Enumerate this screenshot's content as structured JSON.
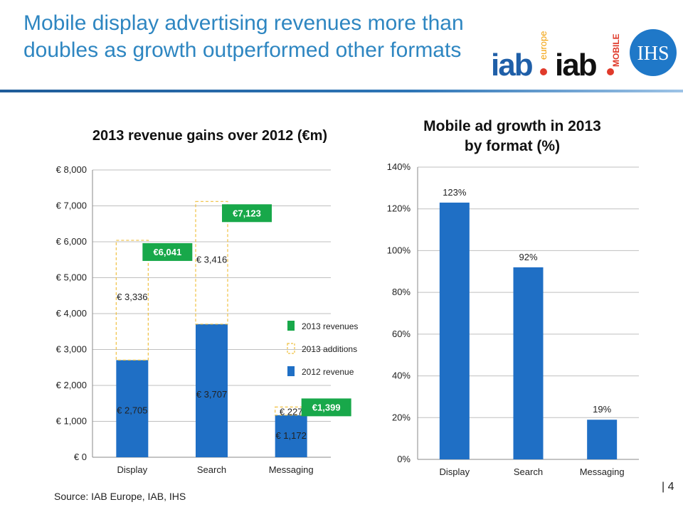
{
  "slide": {
    "title": "Mobile display advertising revenues more than doubles as growth outperformed other formats",
    "source": "Source: IAB Europe, IAB, IHS",
    "page_number": "| 4"
  },
  "logos": {
    "iab_europe": {
      "text": "iab",
      "sub": "europe"
    },
    "iab_mobile": {
      "text": "iab",
      "sub": "MOBILE"
    },
    "ihs": {
      "text": "IHS"
    }
  },
  "colors": {
    "title": "#2E86C1",
    "bar_blue": "#1F6FC5",
    "total_green": "#18A84A",
    "addition_border": "#F0C040"
  },
  "chart_data": [
    {
      "type": "bar",
      "stacked": true,
      "title": "2013 revenue gains over 2012 (€m)",
      "categories": [
        "Display",
        "Search",
        "Messaging"
      ],
      "series": [
        {
          "name": "2012 revenue",
          "values": [
            2705,
            3707,
            1172
          ],
          "labels": [
            "€ 2,705",
            "€ 3,707",
            "€ 1,172"
          ]
        },
        {
          "name": "2013 additions",
          "values": [
            3336,
            3416,
            227
          ],
          "labels": [
            "€ 3,336",
            "€ 3,416",
            "€ 227"
          ]
        }
      ],
      "totals": {
        "name": "2013 revenues",
        "values": [
          6041,
          7123,
          1399
        ],
        "labels": [
          "€6,041",
          "€7,123",
          "€1,399"
        ]
      },
      "legend": [
        "2013 revenues",
        "2013 additions",
        "2012 revenue"
      ],
      "ylim": [
        0,
        8000
      ],
      "yticks": [
        0,
        1000,
        2000,
        3000,
        4000,
        5000,
        6000,
        7000,
        8000
      ],
      "ytick_labels": [
        "€ 0",
        "€ 1,000",
        "€ 2,000",
        "€ 3,000",
        "€ 4,000",
        "€ 5,000",
        "€ 6,000",
        "€ 7,000",
        "€ 8,000"
      ],
      "grid": true,
      "legend_position": "center-right"
    },
    {
      "type": "bar",
      "title": "Mobile ad growth in 2013 by format (%)",
      "title_lines": [
        "Mobile ad growth in 2013",
        "by format (%)"
      ],
      "categories": [
        "Display",
        "Search",
        "Messaging"
      ],
      "values": [
        123,
        92,
        19
      ],
      "labels": [
        "123%",
        "92%",
        "19%"
      ],
      "ylim": [
        0,
        140
      ],
      "yticks": [
        0,
        20,
        40,
        60,
        80,
        100,
        120,
        140
      ],
      "ytick_labels": [
        "0%",
        "20%",
        "40%",
        "60%",
        "80%",
        "100%",
        "120%",
        "140%"
      ],
      "grid": true
    }
  ]
}
